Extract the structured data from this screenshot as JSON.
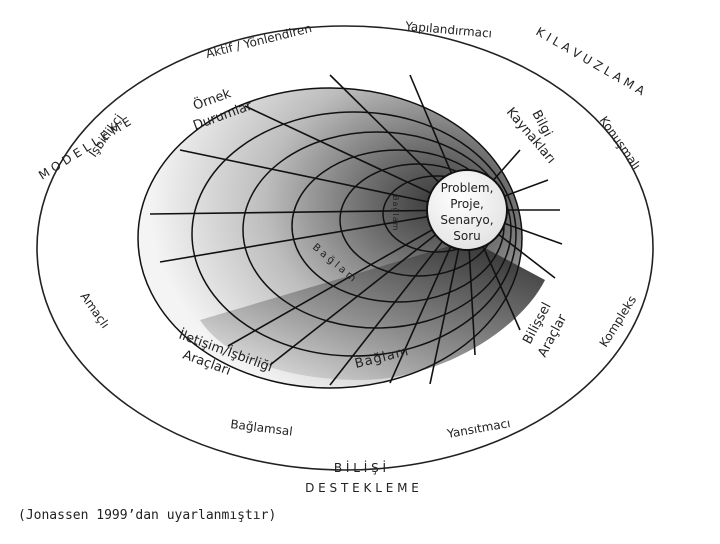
{
  "center": {
    "lines": [
      "Problem,",
      "Proje,",
      "Senaryo,",
      "Soru"
    ]
  },
  "outer_labels": {
    "yapilandirmaci": "Yapılandırmacı",
    "aktif": "Aktif / Yönlendiren",
    "isbirlikci": "İşbirlikçi",
    "konusmali": "Konuşmalı",
    "amacli": "Amaçlı",
    "kompleks": "Kompleks",
    "baglamsal": "Bağlamsal",
    "yansitmaci": "Yansıtmacı"
  },
  "band_labels": {
    "modelleme": "M O D E L L E M E",
    "kilavuzlama": "K I L A V U Z L A M A",
    "bilisi": "B İ L İ Ş İ",
    "destekleme": "D E S T E K L E M E"
  },
  "inner_labels": {
    "ornek": [
      "Örnek",
      "Durumlar"
    ],
    "bilgi": [
      "Bilgi",
      "Kaynakları"
    ],
    "iletisim": [
      "İletişim/İşbirliği",
      "Araçları"
    ],
    "bilissel": [
      "Bilişsel",
      "Araçlar"
    ],
    "baglam_bottom": "Bağlam",
    "baglam_curved": "Bağlam",
    "baglam_small": "Bağlam"
  },
  "caption": "(Jonassen 1999’dan uyarlanmıştır)"
}
